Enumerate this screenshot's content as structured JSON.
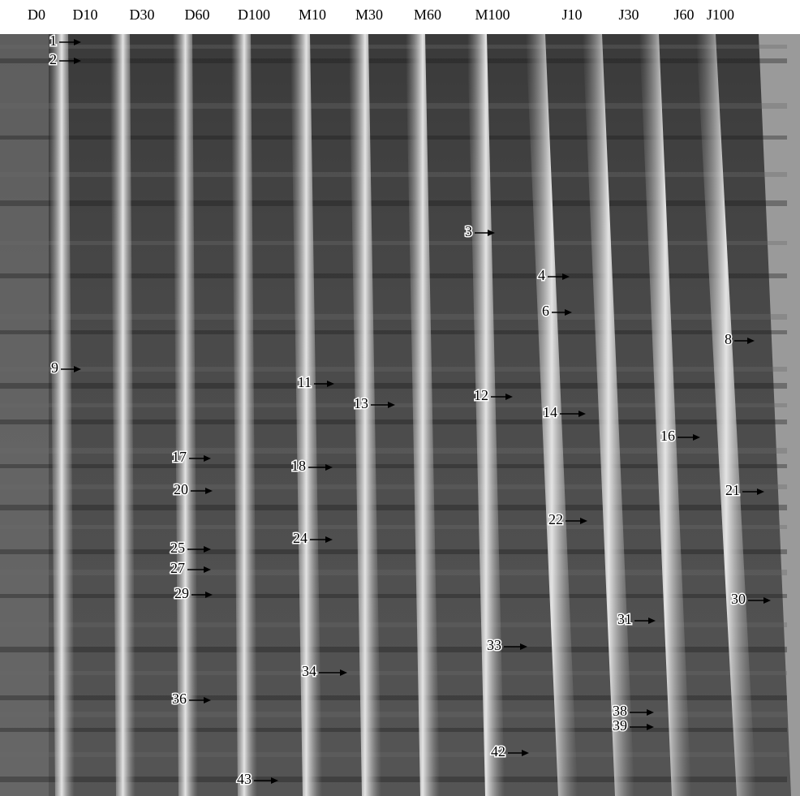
{
  "lanes": [
    "D0",
    "D10",
    "D30",
    "D60",
    "D100",
    "M10",
    "M30",
    "M60",
    "M100",
    "J10",
    "J30",
    "J60",
    "J100"
  ],
  "bands": [
    "1",
    "2",
    "9",
    "3",
    "4",
    "6",
    "8",
    "11",
    "12",
    "13",
    "14",
    "16",
    "17",
    "18",
    "20",
    "21",
    "22",
    "24",
    "25",
    "27",
    "29",
    "30",
    "31",
    "33",
    "34",
    "36",
    "38",
    "39",
    "42",
    "43"
  ]
}
